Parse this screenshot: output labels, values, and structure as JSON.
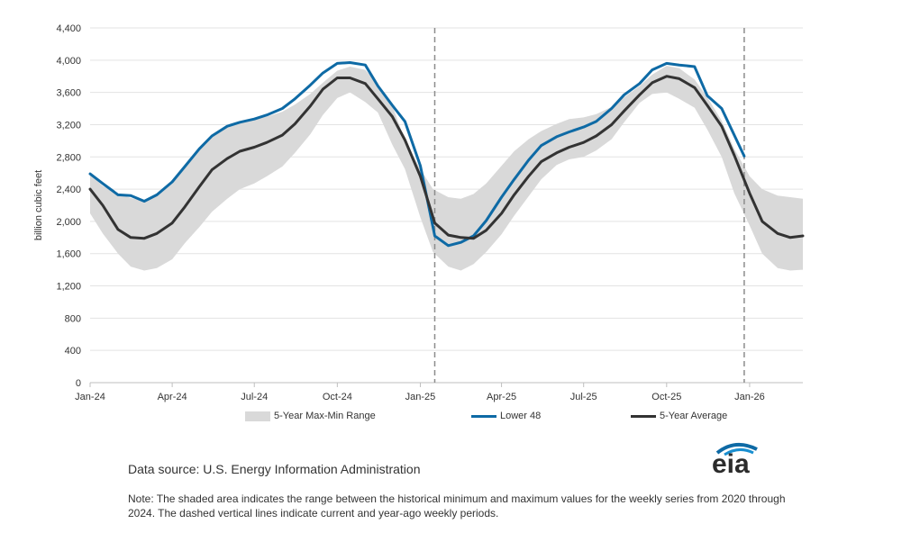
{
  "chart_data": {
    "type": "line",
    "ylabel": "billion cubic feet",
    "ylim": [
      0,
      4400
    ],
    "yticks": [
      0,
      400,
      800,
      1200,
      1600,
      2000,
      2400,
      2800,
      3200,
      3600,
      4000,
      4400
    ],
    "ytick_labels": [
      "0",
      "400",
      "800",
      "1,200",
      "1,600",
      "2,000",
      "2,400",
      "2,800",
      "3,200",
      "3,600",
      "4,000",
      "4,400"
    ],
    "xlim": [
      "2024-01-01",
      "2026-03-01"
    ],
    "xticks": [
      "2024-01-01",
      "2024-04-01",
      "2024-07-01",
      "2024-10-01",
      "2025-01-01",
      "2025-04-01",
      "2025-07-01",
      "2025-10-01",
      "2026-01-01"
    ],
    "xtick_labels": [
      "Jan-24",
      "Apr-24",
      "Jul-24",
      "Oct-24",
      "Jan-25",
      "Apr-25",
      "Jul-25",
      "Oct-25",
      "Jan-26"
    ],
    "grid": "horizontal",
    "legend_position": "bottom",
    "reference_lines": [
      "2025-01-17",
      "2025-12-26"
    ],
    "series": [
      {
        "name": "5-Year Max-Min Range",
        "kind": "band",
        "color": "#d9d9d9",
        "x": [
          "2024-01-01",
          "2024-01-15",
          "2024-02-01",
          "2024-02-15",
          "2024-03-01",
          "2024-03-15",
          "2024-04-01",
          "2024-04-15",
          "2024-05-01",
          "2024-05-15",
          "2024-06-01",
          "2024-06-15",
          "2024-07-01",
          "2024-07-15",
          "2024-08-01",
          "2024-08-15",
          "2024-09-01",
          "2024-09-15",
          "2024-10-01",
          "2024-10-15",
          "2024-11-01",
          "2024-11-15",
          "2024-12-01",
          "2024-12-15",
          "2025-01-01",
          "2025-01-15",
          "2025-02-01",
          "2025-02-15",
          "2025-03-01",
          "2025-03-15",
          "2025-04-01",
          "2025-04-15",
          "2025-05-01",
          "2025-05-15",
          "2025-06-01",
          "2025-06-15",
          "2025-07-01",
          "2025-07-15",
          "2025-08-01",
          "2025-08-15",
          "2025-09-01",
          "2025-09-15",
          "2025-10-01",
          "2025-10-15",
          "2025-11-01",
          "2025-11-15",
          "2025-12-01",
          "2025-12-15",
          "2026-01-01",
          "2026-01-15",
          "2026-02-01",
          "2026-02-15",
          "2026-03-01"
        ],
        "high": [
          2580,
          2440,
          2340,
          2290,
          2250,
          2320,
          2500,
          2700,
          2900,
          3060,
          3170,
          3230,
          3270,
          3300,
          3360,
          3450,
          3580,
          3720,
          3870,
          3920,
          3880,
          3700,
          3440,
          3000,
          2650,
          2400,
          2300,
          2280,
          2340,
          2470,
          2690,
          2870,
          3020,
          3120,
          3210,
          3270,
          3290,
          3330,
          3420,
          3540,
          3680,
          3820,
          3930,
          3900,
          3760,
          3540,
          3250,
          2900,
          2560,
          2400,
          2320,
          2300,
          2280
        ],
        "low": [
          2100,
          1850,
          1600,
          1440,
          1390,
          1420,
          1530,
          1730,
          1930,
          2120,
          2280,
          2400,
          2470,
          2560,
          2680,
          2850,
          3080,
          3320,
          3530,
          3600,
          3480,
          3350,
          2950,
          2650,
          2050,
          1620,
          1440,
          1390,
          1470,
          1620,
          1840,
          2070,
          2310,
          2520,
          2700,
          2770,
          2800,
          2880,
          3020,
          3230,
          3470,
          3580,
          3600,
          3520,
          3410,
          3140,
          2800,
          2350,
          1950,
          1600,
          1420,
          1390,
          1400
        ]
      },
      {
        "name": "Lower 48",
        "kind": "line",
        "color": "#0e6aa5",
        "x": [
          "2024-01-01",
          "2024-01-15",
          "2024-02-01",
          "2024-02-15",
          "2024-03-01",
          "2024-03-15",
          "2024-04-01",
          "2024-04-15",
          "2024-05-01",
          "2024-05-15",
          "2024-06-01",
          "2024-06-15",
          "2024-07-01",
          "2024-07-15",
          "2024-08-01",
          "2024-08-15",
          "2024-09-01",
          "2024-09-15",
          "2024-10-01",
          "2024-10-15",
          "2024-11-01",
          "2024-11-15",
          "2024-12-01",
          "2024-12-15",
          "2025-01-01",
          "2025-01-17",
          "2025-02-01",
          "2025-02-15",
          "2025-03-01",
          "2025-03-15",
          "2025-04-01",
          "2025-04-15",
          "2025-05-01",
          "2025-05-15",
          "2025-06-01",
          "2025-06-15",
          "2025-07-01",
          "2025-07-15",
          "2025-08-01",
          "2025-08-15",
          "2025-09-01",
          "2025-09-15",
          "2025-10-01",
          "2025-10-15",
          "2025-11-01",
          "2025-11-15",
          "2025-12-01",
          "2025-12-15",
          "2025-12-26"
        ],
        "values": [
          2590,
          2470,
          2330,
          2320,
          2250,
          2330,
          2490,
          2680,
          2900,
          3060,
          3180,
          3230,
          3270,
          3320,
          3400,
          3520,
          3690,
          3840,
          3960,
          3970,
          3940,
          3680,
          3440,
          3240,
          2690,
          1820,
          1700,
          1740,
          1820,
          2010,
          2300,
          2520,
          2760,
          2940,
          3050,
          3110,
          3170,
          3240,
          3400,
          3570,
          3710,
          3880,
          3960,
          3940,
          3920,
          3560,
          3400,
          3070,
          2810
        ]
      },
      {
        "name": "5-Year Average",
        "kind": "line",
        "color": "#333333",
        "x": [
          "2024-01-01",
          "2024-01-15",
          "2024-02-01",
          "2024-02-15",
          "2024-03-01",
          "2024-03-15",
          "2024-04-01",
          "2024-04-15",
          "2024-05-01",
          "2024-05-15",
          "2024-06-01",
          "2024-06-15",
          "2024-07-01",
          "2024-07-15",
          "2024-08-01",
          "2024-08-15",
          "2024-09-01",
          "2024-09-15",
          "2024-10-01",
          "2024-10-15",
          "2024-11-01",
          "2024-11-15",
          "2024-12-01",
          "2024-12-15",
          "2025-01-01",
          "2025-01-17",
          "2025-02-01",
          "2025-02-15",
          "2025-03-01",
          "2025-03-15",
          "2025-04-01",
          "2025-04-15",
          "2025-05-01",
          "2025-05-15",
          "2025-06-01",
          "2025-06-15",
          "2025-07-01",
          "2025-07-15",
          "2025-08-01",
          "2025-08-15",
          "2025-09-01",
          "2025-09-15",
          "2025-10-01",
          "2025-10-15",
          "2025-11-01",
          "2025-11-15",
          "2025-12-01",
          "2025-12-15",
          "2026-01-01",
          "2026-01-15",
          "2026-02-01",
          "2026-02-15",
          "2026-03-01"
        ],
        "values": [
          2400,
          2200,
          1900,
          1800,
          1790,
          1850,
          1980,
          2180,
          2430,
          2640,
          2780,
          2870,
          2920,
          2980,
          3070,
          3210,
          3430,
          3640,
          3780,
          3780,
          3710,
          3520,
          3300,
          3010,
          2560,
          1980,
          1830,
          1800,
          1790,
          1890,
          2100,
          2330,
          2560,
          2740,
          2850,
          2920,
          2980,
          3060,
          3200,
          3370,
          3570,
          3720,
          3800,
          3770,
          3660,
          3440,
          3180,
          2820,
          2350,
          2000,
          1850,
          1800,
          1820
        ]
      }
    ]
  },
  "legend": {
    "band_label": "5-Year Max-Min Range",
    "lower48_label": "Lower 48",
    "avg_label": "5-Year Average"
  },
  "footer": {
    "source": "Data source: U.S. Energy Information Administration",
    "note": "Note: The shaded area indicates the range between the historical minimum and maximum values for the weekly series from 2020 through 2024. The dashed vertical lines indicate current and year-ago weekly periods.",
    "logo_text": "eia",
    "logo_color": "#0e6aa5"
  }
}
